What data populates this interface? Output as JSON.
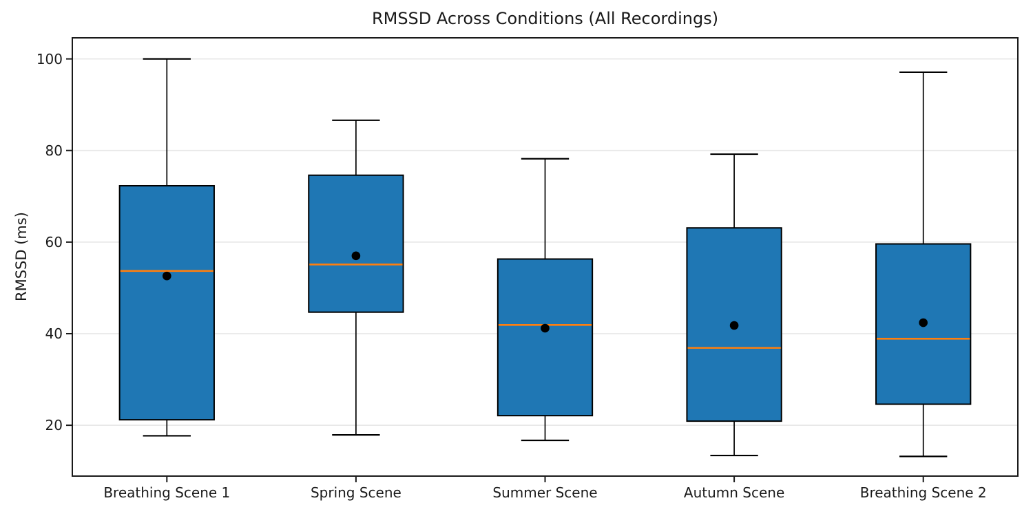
{
  "chart_data": {
    "type": "boxplot",
    "title": "RMSSD Across Conditions (All Recordings)",
    "xlabel": "",
    "ylabel": "RMSSD (ms)",
    "categories": [
      "Breathing Scene 1",
      "Spring Scene",
      "Summer Scene",
      "Autumn Scene",
      "Breathing Scene 2"
    ],
    "yticks": [
      20,
      40,
      60,
      80,
      100
    ],
    "ylim": [
      8.9,
      104.6
    ],
    "grid": true,
    "legend": "none",
    "series": [
      {
        "label": "Breathing Scene 1",
        "whisker_low": 17.7,
        "q1": 21.2,
        "median": 53.7,
        "mean": 52.6,
        "q3": 72.3,
        "whisker_high": 100.0
      },
      {
        "label": "Spring Scene",
        "whisker_low": 17.9,
        "q1": 44.7,
        "median": 55.1,
        "mean": 57.0,
        "q3": 74.6,
        "whisker_high": 86.6
      },
      {
        "label": "Summer Scene",
        "whisker_low": 16.7,
        "q1": 22.1,
        "median": 41.9,
        "mean": 41.2,
        "q3": 56.3,
        "whisker_high": 78.2
      },
      {
        "label": "Autumn Scene",
        "whisker_low": 13.4,
        "q1": 20.9,
        "median": 36.9,
        "mean": 41.8,
        "q3": 63.1,
        "whisker_high": 79.2
      },
      {
        "label": "Breathing Scene 2",
        "whisker_low": 13.2,
        "q1": 24.6,
        "median": 38.9,
        "mean": 42.4,
        "q3": 59.6,
        "whisker_high": 97.1
      }
    ],
    "colors": {
      "box_fill": "#1f77b4",
      "box_edge": "#000000",
      "median": "#ff7f0e",
      "mean_marker": "#000000",
      "whisker": "#000000",
      "grid": "#e8e8e8",
      "spine": "#1a1a1a"
    }
  }
}
